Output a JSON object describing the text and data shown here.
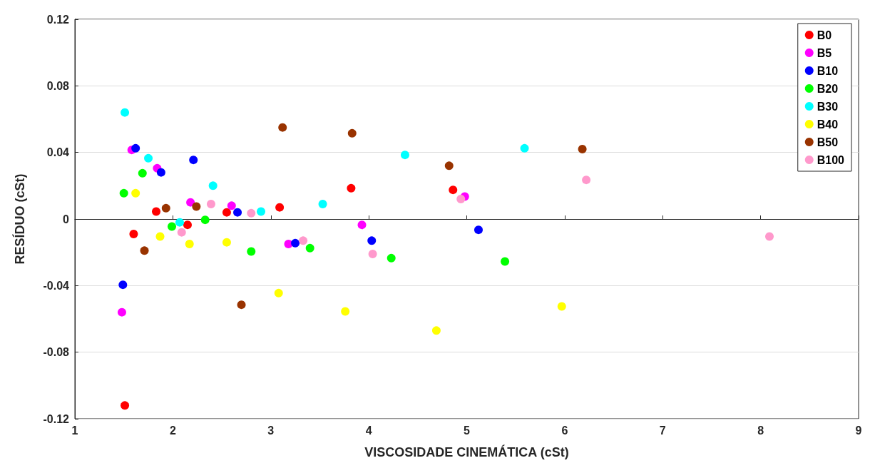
{
  "chart_data": {
    "type": "scatter",
    "xlabel": "VISCOSIDADE CINEMÁTICA (cSt)",
    "ylabel": "RESÍDUO (cSt)",
    "xlim": [
      1,
      9
    ],
    "xticks": [
      1,
      2,
      3,
      4,
      5,
      6,
      7,
      8,
      9
    ],
    "ylim": [
      -0.12,
      0.12
    ],
    "yticks": [
      -0.12,
      -0.08,
      -0.04,
      0,
      0.04,
      0.08,
      0.12
    ],
    "grid": "y",
    "legend": "top right",
    "marker": "circle",
    "series": [
      {
        "name": "B0",
        "color": "#ff0000",
        "x": [
          1.51,
          1.6,
          1.83,
          2.15,
          2.55,
          3.09,
          3.82,
          4.86
        ],
        "values": [
          -0.112,
          -0.009,
          0.0045,
          -0.0035,
          0.004,
          0.007,
          0.0185,
          0.0175
        ]
      },
      {
        "name": "B5",
        "color": "#ff00ff",
        "x": [
          1.48,
          1.58,
          1.84,
          2.18,
          2.6,
          3.18,
          3.93,
          4.98
        ],
        "values": [
          -0.056,
          0.0415,
          0.0305,
          0.01,
          0.008,
          -0.015,
          -0.0035,
          0.0135
        ]
      },
      {
        "name": "B10",
        "color": "#0000ff",
        "x": [
          1.49,
          1.62,
          1.88,
          2.21,
          2.66,
          3.25,
          4.03,
          5.12
        ],
        "values": [
          -0.0395,
          0.0425,
          0.028,
          0.0355,
          0.004,
          -0.0145,
          -0.013,
          -0.0065
        ]
      },
      {
        "name": "B20",
        "color": "#00ff00",
        "x": [
          1.5,
          1.69,
          1.99,
          2.33,
          2.8,
          3.4,
          4.23,
          5.39
        ],
        "values": [
          0.0155,
          0.0275,
          -0.0045,
          -0.0005,
          -0.0195,
          -0.0175,
          -0.0235,
          -0.0255
        ]
      },
      {
        "name": "B30",
        "color": "#00ffff",
        "x": [
          1.51,
          1.75,
          2.07,
          2.41,
          2.9,
          3.53,
          4.37,
          5.59
        ],
        "values": [
          0.064,
          0.0365,
          -0.002,
          0.02,
          0.0045,
          0.009,
          0.0385,
          0.0425
        ]
      },
      {
        "name": "B40",
        "color": "#ffff00",
        "x": [
          1.62,
          1.87,
          2.17,
          2.55,
          3.08,
          3.76,
          4.69,
          5.97
        ],
        "values": [
          0.0155,
          -0.0105,
          -0.015,
          -0.014,
          -0.0445,
          -0.0555,
          -0.067,
          -0.0525
        ]
      },
      {
        "name": "B50",
        "color": "#993300",
        "x": [
          1.71,
          1.93,
          2.24,
          2.7,
          3.12,
          3.83,
          4.82,
          6.18
        ],
        "values": [
          -0.019,
          0.0065,
          0.0075,
          -0.0515,
          0.055,
          0.0515,
          0.032,
          0.042
        ]
      },
      {
        "name": "B100",
        "color": "#ff99cc",
        "x": [
          2.09,
          2.39,
          2.8,
          3.33,
          4.04,
          4.94,
          6.22,
          8.09
        ],
        "values": [
          -0.008,
          0.009,
          0.0035,
          -0.013,
          -0.021,
          0.012,
          0.0235,
          -0.0105
        ]
      }
    ]
  }
}
